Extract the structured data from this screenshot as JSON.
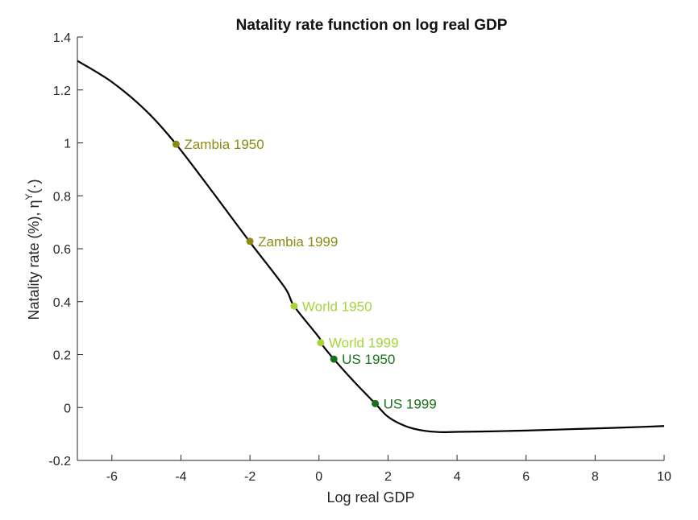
{
  "chart_data": {
    "type": "line",
    "title": "Natality rate function on log real GDP",
    "xlabel": "Log real GDP",
    "ylabel": "Natality rate (%), η",
    "ylabel_superscript": "Y",
    "ylabel_suffix": "(·)",
    "xlim": [
      -7,
      10
    ],
    "ylim": [
      -0.2,
      1.4
    ],
    "xticks": [
      -6,
      -4,
      -2,
      0,
      2,
      4,
      6,
      8,
      10
    ],
    "yticks": [
      -0.2,
      0,
      0.2,
      0.4,
      0.6,
      0.8,
      1,
      1.2,
      1.4
    ],
    "xtick_labels": [
      "-6",
      "-4",
      "-2",
      "0",
      "2",
      "4",
      "6",
      "8",
      "10"
    ],
    "ytick_labels": [
      "-0.2",
      "0",
      "0.2",
      "0.4",
      "0.6",
      "0.8",
      "1",
      "1.2",
      "1.4"
    ],
    "grid": false,
    "series": [
      {
        "x": [
          -7,
          -6,
          -5,
          -4.14,
          -3,
          -2,
          -1,
          -0.72,
          0,
          0.05,
          0.43,
          1,
          1.63,
          2,
          2.5,
          3,
          3.5,
          4,
          5,
          6,
          7,
          8,
          9,
          10
        ],
        "y": [
          1.31,
          1.23,
          1.12,
          0.995,
          0.8,
          0.625,
          0.455,
          0.383,
          0.265,
          0.245,
          0.183,
          0.1,
          0.015,
          -0.035,
          -0.07,
          -0.087,
          -0.093,
          -0.092,
          -0.09,
          -0.087,
          -0.083,
          -0.079,
          -0.075,
          -0.07
        ],
        "color": "#000000"
      }
    ],
    "points": [
      {
        "label": "Zambia 1950",
        "x": -4.14,
        "y": 0.995,
        "color": "#8c8a13"
      },
      {
        "label": "Zambia 1999",
        "x": -2.0,
        "y": 0.628,
        "color": "#8c8a13"
      },
      {
        "label": "World 1950",
        "x": -0.72,
        "y": 0.383,
        "color": "#a5d53b"
      },
      {
        "label": "World 1999",
        "x": 0.05,
        "y": 0.245,
        "color": "#a5d53b"
      },
      {
        "label": "US 1950",
        "x": 0.43,
        "y": 0.183,
        "color": "#17711a"
      },
      {
        "label": "US 1999",
        "x": 1.63,
        "y": 0.015,
        "color": "#17711a"
      }
    ]
  }
}
